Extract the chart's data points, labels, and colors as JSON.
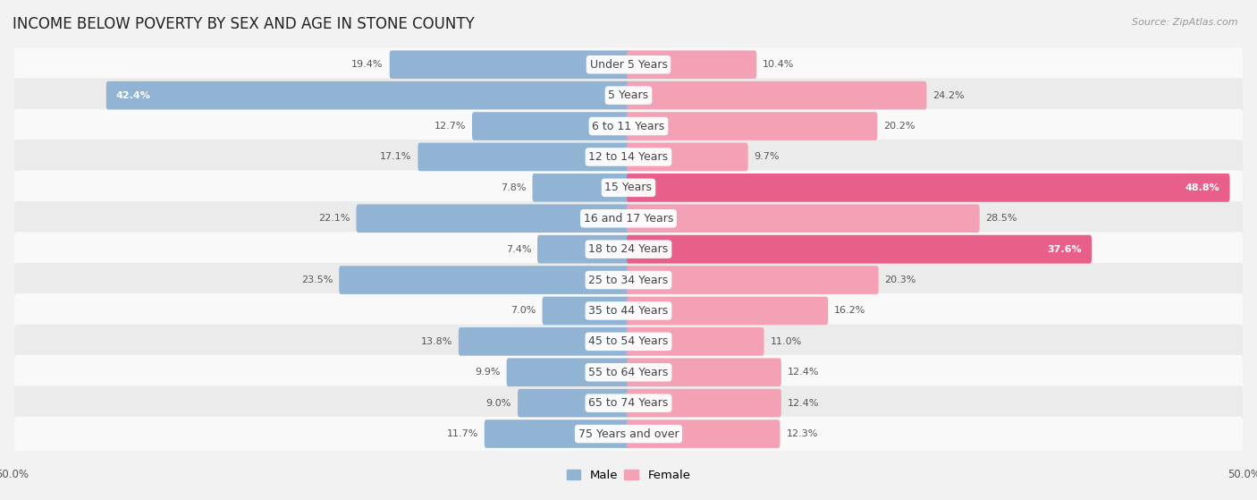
{
  "title": "INCOME BELOW POVERTY BY SEX AND AGE IN STONE COUNTY",
  "source": "Source: ZipAtlas.com",
  "categories": [
    "Under 5 Years",
    "5 Years",
    "6 to 11 Years",
    "12 to 14 Years",
    "15 Years",
    "16 and 17 Years",
    "18 to 24 Years",
    "25 to 34 Years",
    "35 to 44 Years",
    "45 to 54 Years",
    "55 to 64 Years",
    "65 to 74 Years",
    "75 Years and over"
  ],
  "male_values": [
    19.4,
    42.4,
    12.7,
    17.1,
    7.8,
    22.1,
    7.4,
    23.5,
    7.0,
    13.8,
    9.9,
    9.0,
    11.7
  ],
  "female_values": [
    10.4,
    24.2,
    20.2,
    9.7,
    48.8,
    28.5,
    37.6,
    20.3,
    16.2,
    11.0,
    12.4,
    12.4,
    12.3
  ],
  "male_color": "#92b4d4",
  "female_color": "#f4a0b5",
  "female_color_dark": "#e8608a",
  "male_label": "Male",
  "female_label": "Female",
  "axis_max": 50.0,
  "background_color": "#f2f2f2",
  "row_light": "#f9f9f9",
  "row_dark": "#ebebeb",
  "title_fontsize": 12,
  "label_fontsize": 9,
  "value_fontsize": 8,
  "source_fontsize": 8
}
